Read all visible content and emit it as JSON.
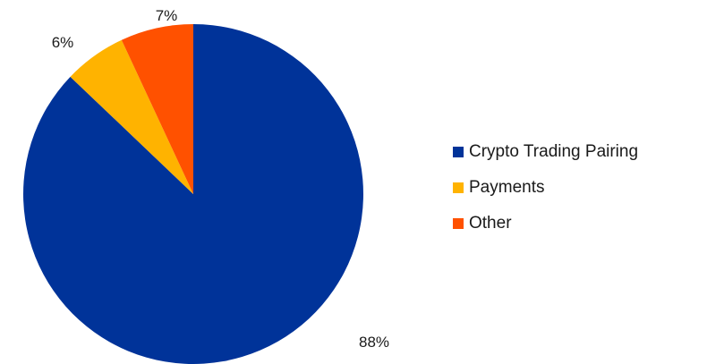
{
  "chart_data": {
    "type": "pie",
    "slices": [
      {
        "name": "Crypto Trading Pairing",
        "value": 88,
        "label": "88%",
        "color": "#003399"
      },
      {
        "name": "Other",
        "value": 7,
        "label": "7%",
        "color": "#ff5100"
      },
      {
        "name": "Payments",
        "value": 6,
        "label": "6%",
        "color": "#ffb300"
      }
    ],
    "legend": {
      "position": "right",
      "entries": [
        {
          "name": "Crypto Trading Pairing",
          "color": "#003399"
        },
        {
          "name": "Payments",
          "color": "#ffb300"
        },
        {
          "name": "Other",
          "color": "#ff5100"
        }
      ]
    },
    "start_angle": "12 o'clock",
    "direction": "clockwise-from-top: blue, then counter-clockwise orange, yellow"
  }
}
